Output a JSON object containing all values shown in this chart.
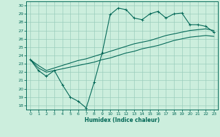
{
  "xlabel": "Humidex (Indice chaleur)",
  "ylabel": "",
  "bg_color": "#cceedd",
  "grid_color": "#99ccbb",
  "line_color": "#006655",
  "xlim": [
    -0.5,
    23.5
  ],
  "ylim": [
    17.5,
    30.5
  ],
  "xticks": [
    0,
    1,
    2,
    3,
    4,
    5,
    6,
    7,
    8,
    9,
    10,
    11,
    12,
    13,
    14,
    15,
    16,
    17,
    18,
    19,
    20,
    21,
    22,
    23
  ],
  "yticks": [
    18,
    19,
    20,
    21,
    22,
    23,
    24,
    25,
    26,
    27,
    28,
    29,
    30
  ],
  "line1_x": [
    0,
    1,
    2,
    3,
    4,
    5,
    6,
    7,
    8,
    9,
    10,
    11,
    12,
    13,
    14,
    15,
    16,
    17,
    18,
    19,
    20,
    21,
    22,
    23
  ],
  "line1_y": [
    23.5,
    22.2,
    21.5,
    22.2,
    20.5,
    19.0,
    18.5,
    17.7,
    20.8,
    24.3,
    28.9,
    29.7,
    29.5,
    28.5,
    28.3,
    29.0,
    29.3,
    28.5,
    29.0,
    29.1,
    27.7,
    27.7,
    27.5,
    26.8
  ],
  "line2_x": [
    0,
    2,
    23
  ],
  "line2_y": [
    23.5,
    22.0,
    27.0
  ],
  "line3_x": [
    0,
    2,
    23
  ],
  "line3_y": [
    23.5,
    22.0,
    26.5
  ],
  "smooth_line2_x": [
    0,
    1,
    2,
    3,
    4,
    5,
    6,
    7,
    8,
    9,
    10,
    11,
    12,
    13,
    14,
    15,
    16,
    17,
    18,
    19,
    20,
    21,
    22,
    23
  ],
  "smooth_line2_y": [
    23.5,
    22.8,
    22.2,
    22.5,
    22.8,
    23.1,
    23.4,
    23.6,
    23.9,
    24.2,
    24.5,
    24.8,
    25.1,
    25.4,
    25.6,
    25.8,
    26.1,
    26.4,
    26.6,
    26.8,
    27.0,
    27.1,
    27.2,
    27.0
  ],
  "smooth_line3_x": [
    0,
    1,
    2,
    3,
    4,
    5,
    6,
    7,
    8,
    9,
    10,
    11,
    12,
    13,
    14,
    15,
    16,
    17,
    18,
    19,
    20,
    21,
    22,
    23
  ],
  "smooth_line3_y": [
    23.5,
    22.5,
    22.0,
    22.2,
    22.4,
    22.6,
    22.8,
    23.0,
    23.2,
    23.5,
    23.7,
    24.0,
    24.3,
    24.5,
    24.8,
    25.0,
    25.2,
    25.5,
    25.8,
    26.0,
    26.2,
    26.3,
    26.4,
    26.3
  ]
}
